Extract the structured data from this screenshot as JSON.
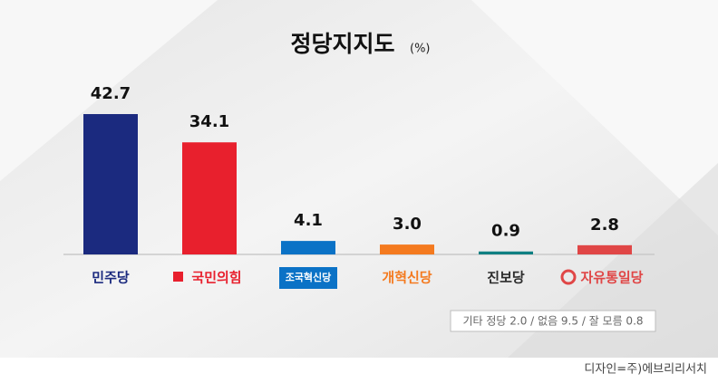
{
  "chart_data": {
    "type": "bar",
    "title": "정당지지도",
    "subtitle": "(%)",
    "categories": [
      "민주당",
      "국민의힘",
      "조국혁신당",
      "개혁신당",
      "진보당",
      "자유통일당"
    ],
    "values": [
      42.7,
      34.1,
      4.1,
      3.0,
      0.9,
      2.8
    ],
    "value_labels": [
      "42.7",
      "34.1",
      "4.1",
      "3.0",
      "0.9",
      "2.8"
    ],
    "colors": [
      "#1b2a7f",
      "#e8202d",
      "#0b72c6",
      "#f47a1f",
      "#0f7f82",
      "#e04646"
    ],
    "note": "기타 정당 2.0 / 없음 9.5 / 잘 모름 0.8",
    "credit": "디자인=주)에브리리서치"
  }
}
